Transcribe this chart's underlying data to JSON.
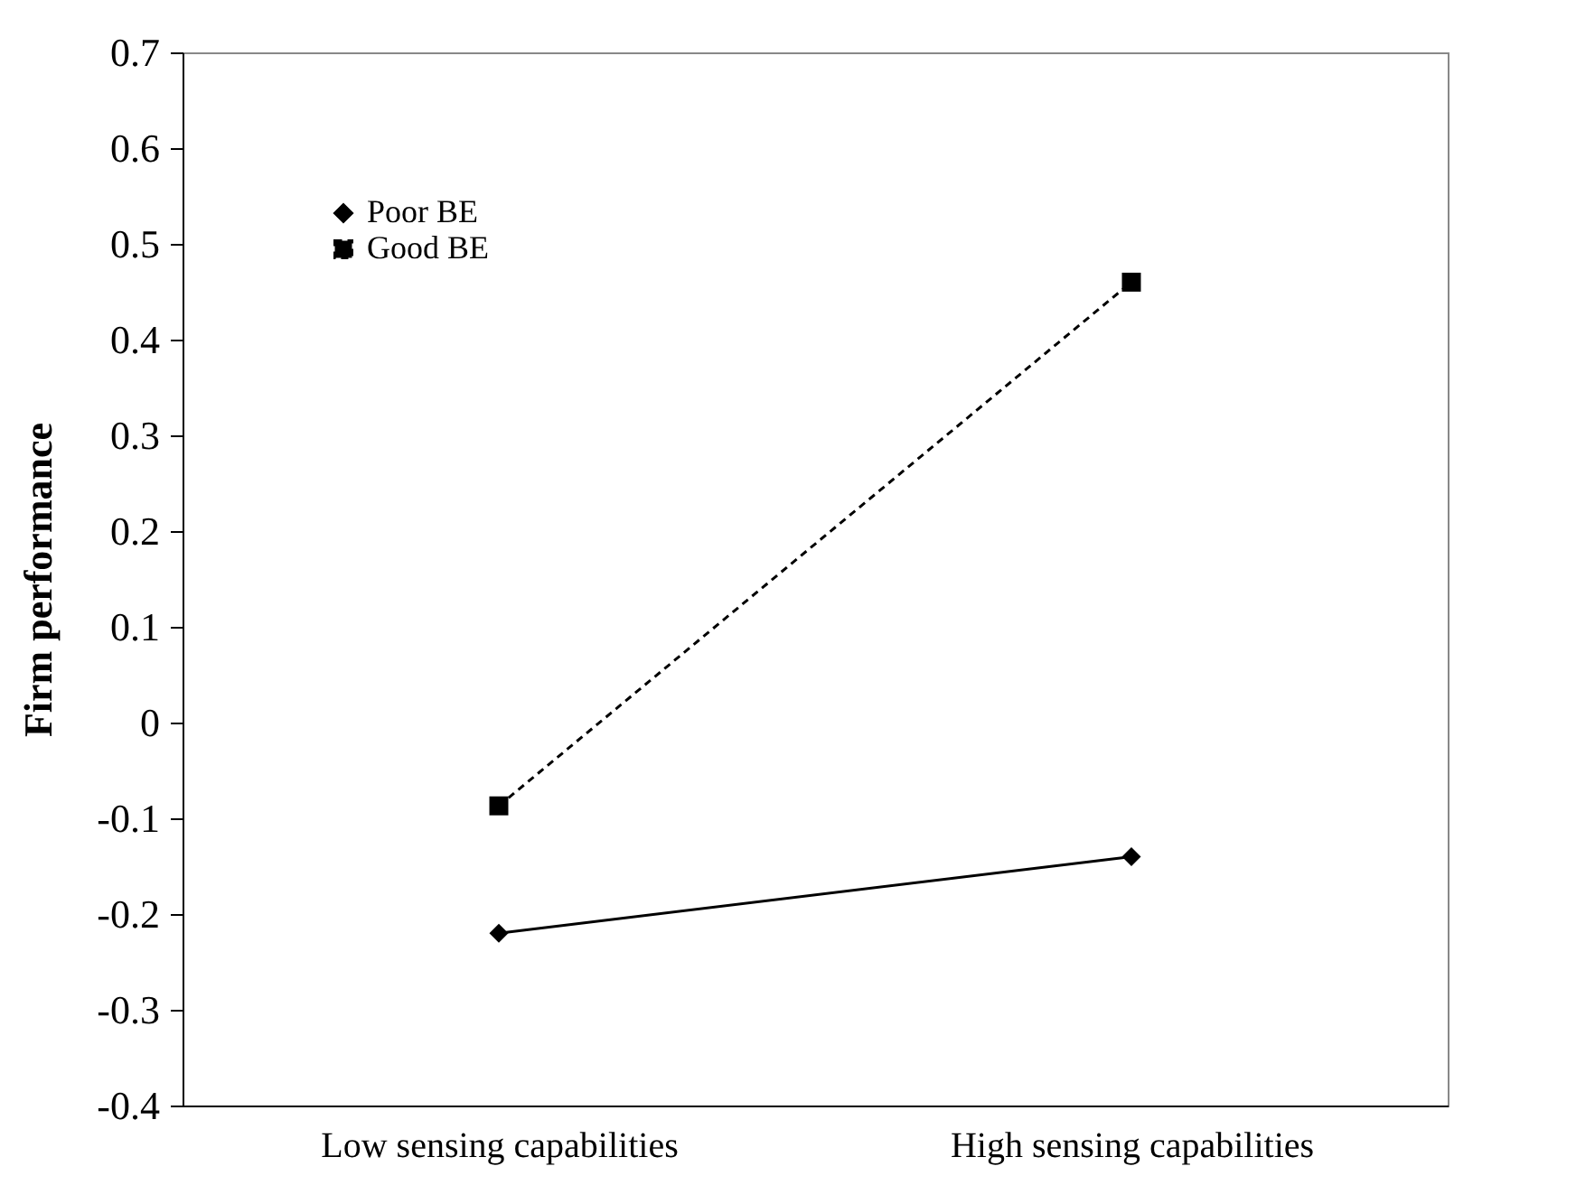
{
  "chart_data": {
    "type": "line",
    "ylabel": "Firm performance",
    "categories": [
      "Low sensing capabilities",
      "High sensing capabilities"
    ],
    "series": [
      {
        "name": "Poor BE",
        "color": "#000000",
        "marker": "diamond",
        "line_style": "solid",
        "values": [
          -0.22,
          -0.14
        ]
      },
      {
        "name": "Good BE",
        "color": "#000000",
        "marker": "square",
        "line_style": "dashed",
        "values": [
          -0.087,
          0.46
        ]
      }
    ],
    "ylim": [
      -0.4,
      0.7
    ],
    "yticks": [
      -0.4,
      -0.3,
      -0.2,
      -0.1,
      0,
      0.1,
      0.2,
      0.3,
      0.4,
      0.5,
      0.6,
      0.7
    ],
    "grid": false,
    "legend": "top left"
  }
}
